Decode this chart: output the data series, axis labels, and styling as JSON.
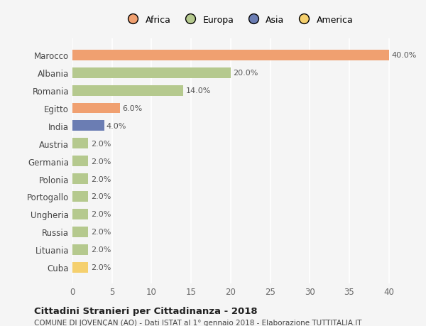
{
  "countries": [
    "Marocco",
    "Albania",
    "Romania",
    "Egitto",
    "India",
    "Austria",
    "Germania",
    "Polonia",
    "Portogallo",
    "Ungheria",
    "Russia",
    "Lituania",
    "Cuba"
  ],
  "values": [
    40.0,
    20.0,
    14.0,
    6.0,
    4.0,
    2.0,
    2.0,
    2.0,
    2.0,
    2.0,
    2.0,
    2.0,
    2.0
  ],
  "continents": [
    "Africa",
    "Europa",
    "Europa",
    "Africa",
    "Asia",
    "Europa",
    "Europa",
    "Europa",
    "Europa",
    "Europa",
    "Europa",
    "Europa",
    "America"
  ],
  "colors": {
    "Africa": "#F0A070",
    "Europa": "#B5C98E",
    "Asia": "#6B7DB3",
    "America": "#F5D06E"
  },
  "legend_continents": [
    "Africa",
    "Europa",
    "Asia",
    "America"
  ],
  "legend_colors": [
    "#F0A070",
    "#B5C98E",
    "#6B7DB3",
    "#F5D06E"
  ],
  "title_bold": "Cittadini Stranieri per Cittadinanza - 2018",
  "subtitle": "COMUNE DI JOVENÇAN (AO) - Dati ISTAT al 1° gennaio 2018 - Elaborazione TUTTITALIA.IT",
  "xlim": [
    0,
    42
  ],
  "xticks": [
    0,
    5,
    10,
    15,
    20,
    25,
    30,
    35,
    40
  ],
  "background_color": "#f5f5f5",
  "grid_color": "#ffffff",
  "bar_height": 0.6
}
